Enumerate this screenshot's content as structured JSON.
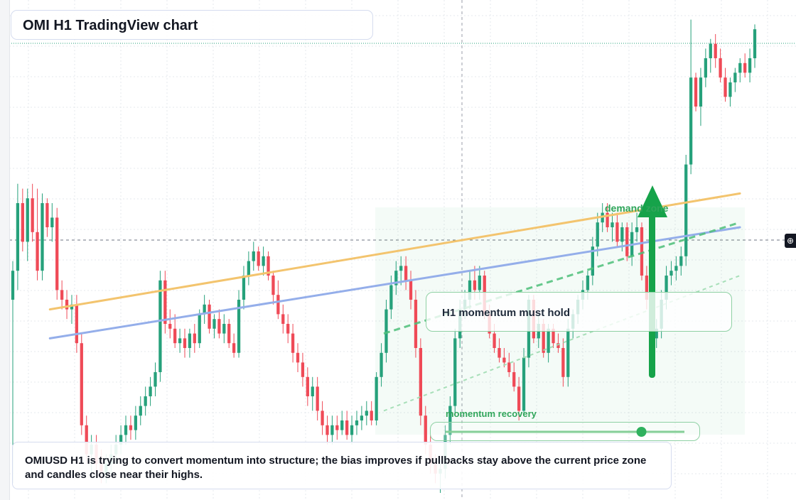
{
  "header": {
    "title": "OMI H1 TradingView chart"
  },
  "notes": {
    "summary": "OMIUSD H1 is trying to convert momentum into structure; the bias improves if pullbacks stay above the current price zone and candles close near their highs."
  },
  "annotations": {
    "momentum_box": "H1 momentum must hold",
    "demand_zone": "demand zone",
    "momentum_recovery": "momentum recovery",
    "recovery_level": 0.82
  },
  "colors": {
    "up": "#26a17b",
    "down": "#ef4a57",
    "ma_fast": "#94aeea",
    "ma_slow": "#f3c46e",
    "accent_green": "#16a34a"
  },
  "icons": {
    "crosshair": "crosshair-plus-icon"
  },
  "chart_data": {
    "type": "candlestick",
    "title": "OMI H1 TradingView chart",
    "symbol": "OMIUSD",
    "timeframe": "H1",
    "ylim": [
      0,
      100
    ],
    "grid": true,
    "legend": "none",
    "candles": [
      {
        "o": 40,
        "h": 48,
        "l": 2,
        "c": 46
      },
      {
        "o": 46,
        "h": 64,
        "l": 42,
        "c": 60
      },
      {
        "o": 60,
        "h": 63,
        "l": 50,
        "c": 52
      },
      {
        "o": 52,
        "h": 63,
        "l": 48,
        "c": 61
      },
      {
        "o": 61,
        "h": 64,
        "l": 52,
        "c": 54
      },
      {
        "o": 54,
        "h": 63,
        "l": 44,
        "c": 46
      },
      {
        "o": 46,
        "h": 62,
        "l": 44,
        "c": 60
      },
      {
        "o": 60,
        "h": 61,
        "l": 53,
        "c": 55
      },
      {
        "o": 55,
        "h": 60,
        "l": 52,
        "c": 57
      },
      {
        "o": 57,
        "h": 59,
        "l": 40,
        "c": 42
      },
      {
        "o": 42,
        "h": 44,
        "l": 38,
        "c": 40
      },
      {
        "o": 40,
        "h": 42,
        "l": 36,
        "c": 38
      },
      {
        "o": 38,
        "h": 41,
        "l": 35,
        "c": 39
      },
      {
        "o": 39,
        "h": 41,
        "l": 29,
        "c": 31
      },
      {
        "o": 31,
        "h": 33,
        "l": 12,
        "c": 14
      },
      {
        "o": 14,
        "h": 16,
        "l": 6,
        "c": 8
      },
      {
        "o": 8,
        "h": 12,
        "l": 4,
        "c": 10
      },
      {
        "o": 10,
        "h": 12,
        "l": 4,
        "c": 6
      },
      {
        "o": 6,
        "h": 9,
        "l": 2,
        "c": 4
      },
      {
        "o": 4,
        "h": 8,
        "l": 2,
        "c": 6
      },
      {
        "o": 6,
        "h": 10,
        "l": 4,
        "c": 8
      },
      {
        "o": 8,
        "h": 12,
        "l": 6,
        "c": 10
      },
      {
        "o": 10,
        "h": 14,
        "l": 8,
        "c": 12
      },
      {
        "o": 12,
        "h": 16,
        "l": 10,
        "c": 14
      },
      {
        "o": 14,
        "h": 16,
        "l": 11,
        "c": 13
      },
      {
        "o": 13,
        "h": 18,
        "l": 11,
        "c": 16
      },
      {
        "o": 16,
        "h": 20,
        "l": 14,
        "c": 18
      },
      {
        "o": 18,
        "h": 22,
        "l": 16,
        "c": 20
      },
      {
        "o": 20,
        "h": 24,
        "l": 18,
        "c": 22
      },
      {
        "o": 22,
        "h": 27,
        "l": 20,
        "c": 25
      },
      {
        "o": 25,
        "h": 46,
        "l": 23,
        "c": 44
      },
      {
        "o": 44,
        "h": 46,
        "l": 33,
        "c": 35
      },
      {
        "o": 35,
        "h": 38,
        "l": 32,
        "c": 34
      },
      {
        "o": 34,
        "h": 37,
        "l": 30,
        "c": 31
      },
      {
        "o": 31,
        "h": 34,
        "l": 29,
        "c": 32
      },
      {
        "o": 32,
        "h": 34,
        "l": 28,
        "c": 30
      },
      {
        "o": 30,
        "h": 34,
        "l": 28,
        "c": 33
      },
      {
        "o": 33,
        "h": 35,
        "l": 29,
        "c": 31
      },
      {
        "o": 31,
        "h": 38,
        "l": 30,
        "c": 37
      },
      {
        "o": 37,
        "h": 41,
        "l": 35,
        "c": 39
      },
      {
        "o": 39,
        "h": 40,
        "l": 33,
        "c": 34
      },
      {
        "o": 34,
        "h": 37,
        "l": 32,
        "c": 36
      },
      {
        "o": 36,
        "h": 38,
        "l": 32,
        "c": 33
      },
      {
        "o": 33,
        "h": 37,
        "l": 31,
        "c": 35
      },
      {
        "o": 35,
        "h": 36,
        "l": 30,
        "c": 31
      },
      {
        "o": 31,
        "h": 33,
        "l": 28,
        "c": 29
      },
      {
        "o": 29,
        "h": 42,
        "l": 28,
        "c": 40
      },
      {
        "o": 40,
        "h": 47,
        "l": 38,
        "c": 45
      },
      {
        "o": 45,
        "h": 50,
        "l": 43,
        "c": 48
      },
      {
        "o": 48,
        "h": 52,
        "l": 46,
        "c": 50
      },
      {
        "o": 50,
        "h": 51,
        "l": 46,
        "c": 47
      },
      {
        "o": 47,
        "h": 51,
        "l": 45,
        "c": 49
      },
      {
        "o": 49,
        "h": 50,
        "l": 44,
        "c": 45
      },
      {
        "o": 45,
        "h": 46,
        "l": 39,
        "c": 41
      },
      {
        "o": 41,
        "h": 44,
        "l": 36,
        "c": 37
      },
      {
        "o": 37,
        "h": 39,
        "l": 33,
        "c": 35
      },
      {
        "o": 35,
        "h": 37,
        "l": 31,
        "c": 33
      },
      {
        "o": 33,
        "h": 35,
        "l": 27,
        "c": 29
      },
      {
        "o": 29,
        "h": 31,
        "l": 25,
        "c": 27
      },
      {
        "o": 27,
        "h": 29,
        "l": 22,
        "c": 24
      },
      {
        "o": 24,
        "h": 26,
        "l": 18,
        "c": 20
      },
      {
        "o": 20,
        "h": 24,
        "l": 17,
        "c": 22
      },
      {
        "o": 22,
        "h": 24,
        "l": 15,
        "c": 17
      },
      {
        "o": 17,
        "h": 19,
        "l": 12,
        "c": 14
      },
      {
        "o": 14,
        "h": 16,
        "l": 10,
        "c": 12
      },
      {
        "o": 12,
        "h": 16,
        "l": 10,
        "c": 14
      },
      {
        "o": 14,
        "h": 16,
        "l": 11,
        "c": 13
      },
      {
        "o": 13,
        "h": 17,
        "l": 12,
        "c": 15
      },
      {
        "o": 15,
        "h": 17,
        "l": 11,
        "c": 12
      },
      {
        "o": 12,
        "h": 16,
        "l": 10,
        "c": 14
      },
      {
        "o": 14,
        "h": 17,
        "l": 12,
        "c": 15
      },
      {
        "o": 15,
        "h": 18,
        "l": 13,
        "c": 16
      },
      {
        "o": 16,
        "h": 19,
        "l": 14,
        "c": 17
      },
      {
        "o": 17,
        "h": 19,
        "l": 14,
        "c": 15
      },
      {
        "o": 15,
        "h": 25,
        "l": 14,
        "c": 24
      },
      {
        "o": 24,
        "h": 31,
        "l": 22,
        "c": 29
      },
      {
        "o": 29,
        "h": 40,
        "l": 27,
        "c": 38
      },
      {
        "o": 38,
        "h": 45,
        "l": 36,
        "c": 43
      },
      {
        "o": 43,
        "h": 48,
        "l": 41,
        "c": 46
      },
      {
        "o": 46,
        "h": 49,
        "l": 43,
        "c": 47
      },
      {
        "o": 47,
        "h": 49,
        "l": 42,
        "c": 44
      },
      {
        "o": 44,
        "h": 46,
        "l": 38,
        "c": 40
      },
      {
        "o": 40,
        "h": 42,
        "l": 28,
        "c": 30
      },
      {
        "o": 30,
        "h": 32,
        "l": 14,
        "c": 16
      },
      {
        "o": 16,
        "h": 18,
        "l": 8,
        "c": 10
      },
      {
        "o": 10,
        "h": 12,
        "l": 4,
        "c": 6
      },
      {
        "o": 6,
        "h": 8,
        "l": 2,
        "c": 4
      },
      {
        "o": 4,
        "h": 7,
        "l": 0,
        "c": 5
      },
      {
        "o": 5,
        "h": 14,
        "l": 3,
        "c": 12
      },
      {
        "o": 12,
        "h": 20,
        "l": 10,
        "c": 18
      },
      {
        "o": 18,
        "h": 34,
        "l": 16,
        "c": 32
      },
      {
        "o": 32,
        "h": 40,
        "l": 30,
        "c": 38
      },
      {
        "o": 38,
        "h": 42,
        "l": 36,
        "c": 40
      },
      {
        "o": 40,
        "h": 46,
        "l": 38,
        "c": 44
      },
      {
        "o": 44,
        "h": 47,
        "l": 40,
        "c": 42
      },
      {
        "o": 42,
        "h": 47,
        "l": 40,
        "c": 45
      },
      {
        "o": 45,
        "h": 46,
        "l": 36,
        "c": 37
      },
      {
        "o": 37,
        "h": 39,
        "l": 32,
        "c": 33
      },
      {
        "o": 33,
        "h": 35,
        "l": 29,
        "c": 30
      },
      {
        "o": 30,
        "h": 32,
        "l": 27,
        "c": 28
      },
      {
        "o": 28,
        "h": 30,
        "l": 26,
        "c": 27
      },
      {
        "o": 27,
        "h": 29,
        "l": 24,
        "c": 25
      },
      {
        "o": 25,
        "h": 27,
        "l": 21,
        "c": 22
      },
      {
        "o": 22,
        "h": 24,
        "l": 15,
        "c": 17
      },
      {
        "o": 17,
        "h": 30,
        "l": 16,
        "c": 28
      },
      {
        "o": 28,
        "h": 41,
        "l": 26,
        "c": 40
      },
      {
        "o": 40,
        "h": 41,
        "l": 31,
        "c": 32
      },
      {
        "o": 32,
        "h": 37,
        "l": 30,
        "c": 35
      },
      {
        "o": 35,
        "h": 36,
        "l": 28,
        "c": 29
      },
      {
        "o": 29,
        "h": 35,
        "l": 27,
        "c": 34
      },
      {
        "o": 34,
        "h": 35,
        "l": 30,
        "c": 31
      },
      {
        "o": 31,
        "h": 33,
        "l": 29,
        "c": 30
      },
      {
        "o": 30,
        "h": 32,
        "l": 22,
        "c": 24
      },
      {
        "o": 24,
        "h": 36,
        "l": 22,
        "c": 34
      },
      {
        "o": 34,
        "h": 38,
        "l": 32,
        "c": 37
      },
      {
        "o": 37,
        "h": 41,
        "l": 35,
        "c": 40
      },
      {
        "o": 40,
        "h": 44,
        "l": 38,
        "c": 42
      },
      {
        "o": 42,
        "h": 46,
        "l": 40,
        "c": 45
      },
      {
        "o": 45,
        "h": 53,
        "l": 43,
        "c": 51
      },
      {
        "o": 51,
        "h": 58,
        "l": 49,
        "c": 56
      },
      {
        "o": 56,
        "h": 60,
        "l": 54,
        "c": 58
      },
      {
        "o": 58,
        "h": 60,
        "l": 54,
        "c": 55
      },
      {
        "o": 55,
        "h": 58,
        "l": 52,
        "c": 56
      },
      {
        "o": 56,
        "h": 58,
        "l": 51,
        "c": 52
      },
      {
        "o": 52,
        "h": 56,
        "l": 50,
        "c": 55
      },
      {
        "o": 55,
        "h": 56,
        "l": 48,
        "c": 49
      },
      {
        "o": 49,
        "h": 56,
        "l": 47,
        "c": 54
      },
      {
        "o": 54,
        "h": 58,
        "l": 52,
        "c": 55
      },
      {
        "o": 55,
        "h": 56,
        "l": 44,
        "c": 45
      },
      {
        "o": 45,
        "h": 47,
        "l": 38,
        "c": 40
      },
      {
        "o": 40,
        "h": 42,
        "l": 30,
        "c": 32
      },
      {
        "o": 32,
        "h": 36,
        "l": 30,
        "c": 34
      },
      {
        "o": 34,
        "h": 42,
        "l": 32,
        "c": 40
      },
      {
        "o": 40,
        "h": 47,
        "l": 38,
        "c": 45
      },
      {
        "o": 45,
        "h": 48,
        "l": 43,
        "c": 46
      },
      {
        "o": 46,
        "h": 49,
        "l": 44,
        "c": 47
      },
      {
        "o": 47,
        "h": 51,
        "l": 45,
        "c": 49
      },
      {
        "o": 49,
        "h": 70,
        "l": 47,
        "c": 68
      },
      {
        "o": 68,
        "h": 98,
        "l": 66,
        "c": 86
      },
      {
        "o": 86,
        "h": 87,
        "l": 79,
        "c": 80
      },
      {
        "o": 80,
        "h": 88,
        "l": 76,
        "c": 86
      },
      {
        "o": 86,
        "h": 92,
        "l": 84,
        "c": 90
      },
      {
        "o": 90,
        "h": 94,
        "l": 87,
        "c": 93
      },
      {
        "o": 93,
        "h": 95,
        "l": 88,
        "c": 90
      },
      {
        "o": 90,
        "h": 92,
        "l": 85,
        "c": 86
      },
      {
        "o": 86,
        "h": 88,
        "l": 81,
        "c": 82
      },
      {
        "o": 82,
        "h": 86,
        "l": 80,
        "c": 85
      },
      {
        "o": 85,
        "h": 88,
        "l": 83,
        "c": 87
      },
      {
        "o": 87,
        "h": 90,
        "l": 85,
        "c": 89
      },
      {
        "o": 89,
        "h": 91,
        "l": 86,
        "c": 87
      },
      {
        "o": 87,
        "h": 92,
        "l": 85,
        "c": 90
      },
      {
        "o": 90,
        "h": 97,
        "l": 88,
        "c": 96
      }
    ],
    "overlays": {
      "ma_slow": [
        [
          0.05,
          38
        ],
        [
          0.98,
          62
        ]
      ],
      "ma_fast": [
        [
          0.05,
          32
        ],
        [
          0.98,
          55
        ]
      ],
      "trend_dashed": [
        [
          0.5,
          33
        ],
        [
          0.98,
          56
        ]
      ],
      "trend_dotted": [
        [
          0.5,
          17
        ],
        [
          0.98,
          45
        ]
      ]
    }
  }
}
